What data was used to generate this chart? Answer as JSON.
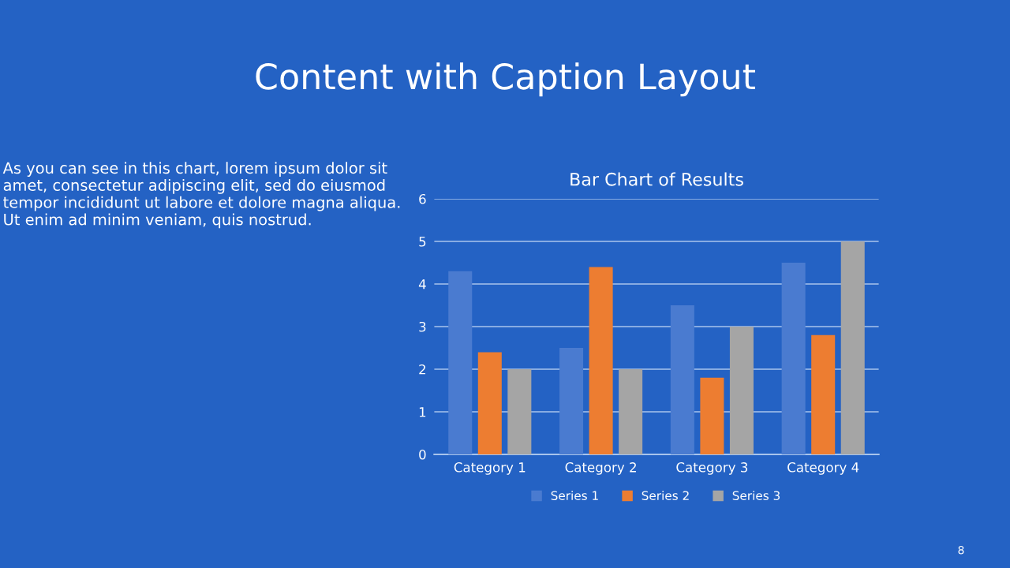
{
  "chart_data": {
    "type": "bar",
    "title": "Bar Chart of Results",
    "categories": [
      "Category 1",
      "Category 2",
      "Category 3",
      "Category 4"
    ],
    "series": [
      {
        "name": "Series 1",
        "color": "#4a7bd0",
        "values": [
          4.3,
          2.5,
          3.5,
          4.5
        ]
      },
      {
        "name": "Series 2",
        "color": "#ed7d31",
        "values": [
          2.4,
          4.4,
          1.8,
          2.8
        ]
      },
      {
        "name": "Series 3",
        "color": "#a5a5a5",
        "values": [
          2,
          2,
          3,
          5
        ]
      }
    ],
    "ylim": [
      0,
      6
    ],
    "yticks": [
      0,
      1,
      2,
      3,
      4,
      5,
      6
    ],
    "grid": "y",
    "legend": "bottom",
    "annotations": [
      "Content with Caption Layout",
      "As you can see in this chart, lorem ipsum dolor sit amet, consectetur adipiscing elit, sed do eiusmod tempor incididunt ut labore et dolore magna aliqua. Ut enim ad minim veniam, quis nostrud.",
      "8"
    ]
  }
}
